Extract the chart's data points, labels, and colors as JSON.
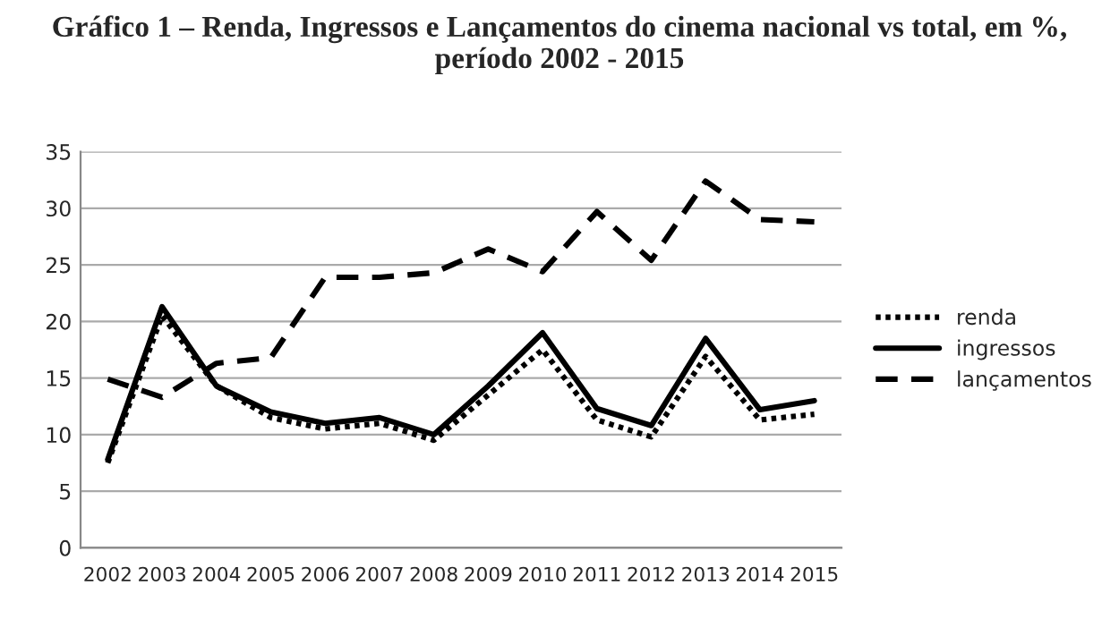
{
  "chart_data": {
    "type": "line",
    "title": "Gráfico 1 – Renda, Ingressos e Lançamentos do cinema nacional vs total, em %, período 2002 - 2015",
    "categories": [
      "2002",
      "2003",
      "2004",
      "2005",
      "2006",
      "2007",
      "2008",
      "2009",
      "2010",
      "2011",
      "2012",
      "2013",
      "2014",
      "2015"
    ],
    "series": [
      {
        "name": "renda",
        "color": "#000000",
        "line_style": "dotted",
        "values": [
          7.5,
          20.5,
          14.3,
          11.5,
          10.5,
          11,
          9.5,
          13.5,
          17.5,
          11.3,
          9.8,
          16.9,
          11.3,
          11.8
        ]
      },
      {
        "name": "ingressos",
        "color": "#000000",
        "line_style": "solid",
        "values": [
          7.8,
          21.3,
          14.3,
          12,
          11,
          11.5,
          10,
          14.3,
          19,
          12.3,
          10.8,
          18.5,
          12.2,
          13
        ]
      },
      {
        "name": "lançamentos",
        "color": "#000000",
        "line_style": "dashed",
        "values": [
          14.9,
          13.3,
          16.3,
          16.8,
          23.9,
          23.9,
          24.3,
          26.4,
          24.4,
          29.7,
          25.4,
          32.4,
          29,
          28.8
        ]
      }
    ],
    "ylim": [
      0,
      35
    ],
    "yticks": [
      0,
      5,
      10,
      15,
      20,
      25,
      30,
      35
    ],
    "grid": "y",
    "legend": "right"
  }
}
